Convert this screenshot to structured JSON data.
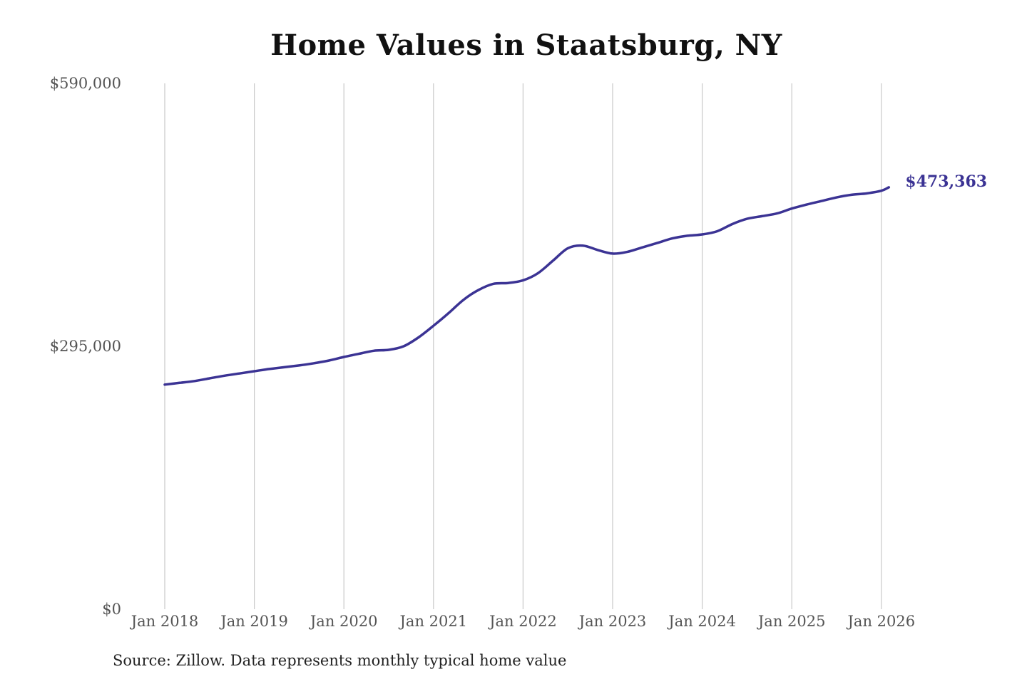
{
  "chart_data": {
    "type": "line",
    "title": "Home Values in Staatsburg, NY",
    "xlabel": "",
    "ylabel": "",
    "ylim": [
      0,
      590000
    ],
    "y_ticks": [
      {
        "value": 0,
        "label": "$0"
      },
      {
        "value": 295000,
        "label": "$295,000"
      },
      {
        "value": 590000,
        "label": "$590,000"
      }
    ],
    "x_ticks": [
      "Jan 2018",
      "Jan 2019",
      "Jan 2020",
      "Jan 2021",
      "Jan 2022",
      "Jan 2023",
      "Jan 2024",
      "Jan 2025",
      "Jan 2026"
    ],
    "x_range": [
      "2018-01",
      "2026-02"
    ],
    "grid": "vertical",
    "line_color": "#3b3394",
    "end_label": "$473,363",
    "series": [
      {
        "points": [
          [
            "2018-01",
            252000
          ],
          [
            "2018-03",
            254000
          ],
          [
            "2018-05",
            256000
          ],
          [
            "2018-07",
            259000
          ],
          [
            "2018-09",
            262000
          ],
          [
            "2018-11",
            264500
          ],
          [
            "2019-01",
            267000
          ],
          [
            "2019-03",
            269500
          ],
          [
            "2019-05",
            271500
          ],
          [
            "2019-07",
            273500
          ],
          [
            "2019-09",
            276000
          ],
          [
            "2019-11",
            279000
          ],
          [
            "2020-01",
            283000
          ],
          [
            "2020-03",
            286500
          ],
          [
            "2020-05",
            290000
          ],
          [
            "2020-07",
            291000
          ],
          [
            "2020-09",
            295000
          ],
          [
            "2020-11",
            305000
          ],
          [
            "2021-01",
            318000
          ],
          [
            "2021-03",
            332000
          ],
          [
            "2021-05",
            347000
          ],
          [
            "2021-07",
            358000
          ],
          [
            "2021-09",
            365000
          ],
          [
            "2021-11",
            366000
          ],
          [
            "2022-01",
            369000
          ],
          [
            "2022-03",
            377000
          ],
          [
            "2022-05",
            391000
          ],
          [
            "2022-07",
            405000
          ],
          [
            "2022-09",
            408000
          ],
          [
            "2022-11",
            403000
          ],
          [
            "2023-01",
            399000
          ],
          [
            "2023-03",
            401000
          ],
          [
            "2023-05",
            406000
          ],
          [
            "2023-07",
            411000
          ],
          [
            "2023-09",
            416000
          ],
          [
            "2023-11",
            419000
          ],
          [
            "2024-01",
            420500
          ],
          [
            "2024-03",
            424000
          ],
          [
            "2024-05",
            432000
          ],
          [
            "2024-07",
            438000
          ],
          [
            "2024-09",
            441000
          ],
          [
            "2024-11",
            444000
          ],
          [
            "2025-01",
            449500
          ],
          [
            "2025-03",
            454000
          ],
          [
            "2025-05",
            458000
          ],
          [
            "2025-07",
            462000
          ],
          [
            "2025-09",
            465000
          ],
          [
            "2025-11",
            466500
          ],
          [
            "2026-01",
            469500
          ],
          [
            "2026-02",
            473363
          ]
        ]
      }
    ]
  },
  "source": "Source: Zillow. Data represents monthly typical home value"
}
